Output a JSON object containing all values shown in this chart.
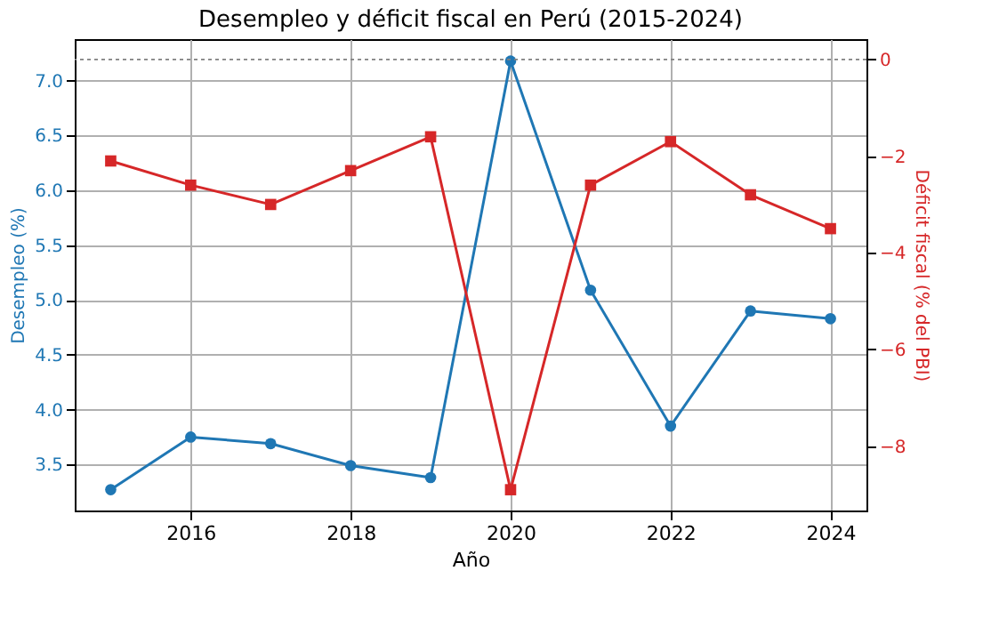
{
  "chart_data": {
    "type": "line",
    "title": "Desempleo y déficit fiscal en Perú (2015-2024)",
    "xlabel": "Año",
    "ylabel": "Desempleo (%)",
    "y2label": "Déficit fiscal (% del PBI)",
    "x": [
      2015,
      2016,
      2017,
      2018,
      2019,
      2020,
      2021,
      2022,
      2023,
      2024
    ],
    "series": [
      {
        "color": "#1f77b4",
        "marker": "circle",
        "values": [
          3.27,
          3.75,
          3.69,
          3.49,
          3.38,
          7.18,
          5.09,
          3.85,
          4.9,
          4.83
        ]
      },
      {
        "color": "#d62728",
        "marker": "square",
        "axis": "y2",
        "values": [
          -2.1,
          -2.6,
          -3.0,
          -2.3,
          -1.6,
          -8.9,
          -2.6,
          -1.7,
          -2.8,
          -3.5
        ]
      }
    ],
    "xlim": [
      2014.55,
      2024.45
    ],
    "xticks": [
      2016,
      2018,
      2020,
      2022,
      2024
    ],
    "ylim": [
      3.08,
      7.38
    ],
    "yticks": [
      3.5,
      {
        "value": 4,
        "label": "4.0"
      },
      4.5,
      {
        "value": 5,
        "label": "5.0"
      },
      5.5,
      {
        "value": 6,
        "label": "6.0"
      },
      6.5,
      {
        "value": 7,
        "label": "7.0"
      }
    ],
    "y2lim": [
      -9.33,
      0.42
    ],
    "y2ticks": [
      -8,
      -6,
      -4,
      -2,
      0
    ],
    "ref_lines": [
      {
        "axis": "y2",
        "value": 0,
        "color": "#808080",
        "line_style": "dotted"
      }
    ],
    "grid": true,
    "line_style": "solid"
  }
}
